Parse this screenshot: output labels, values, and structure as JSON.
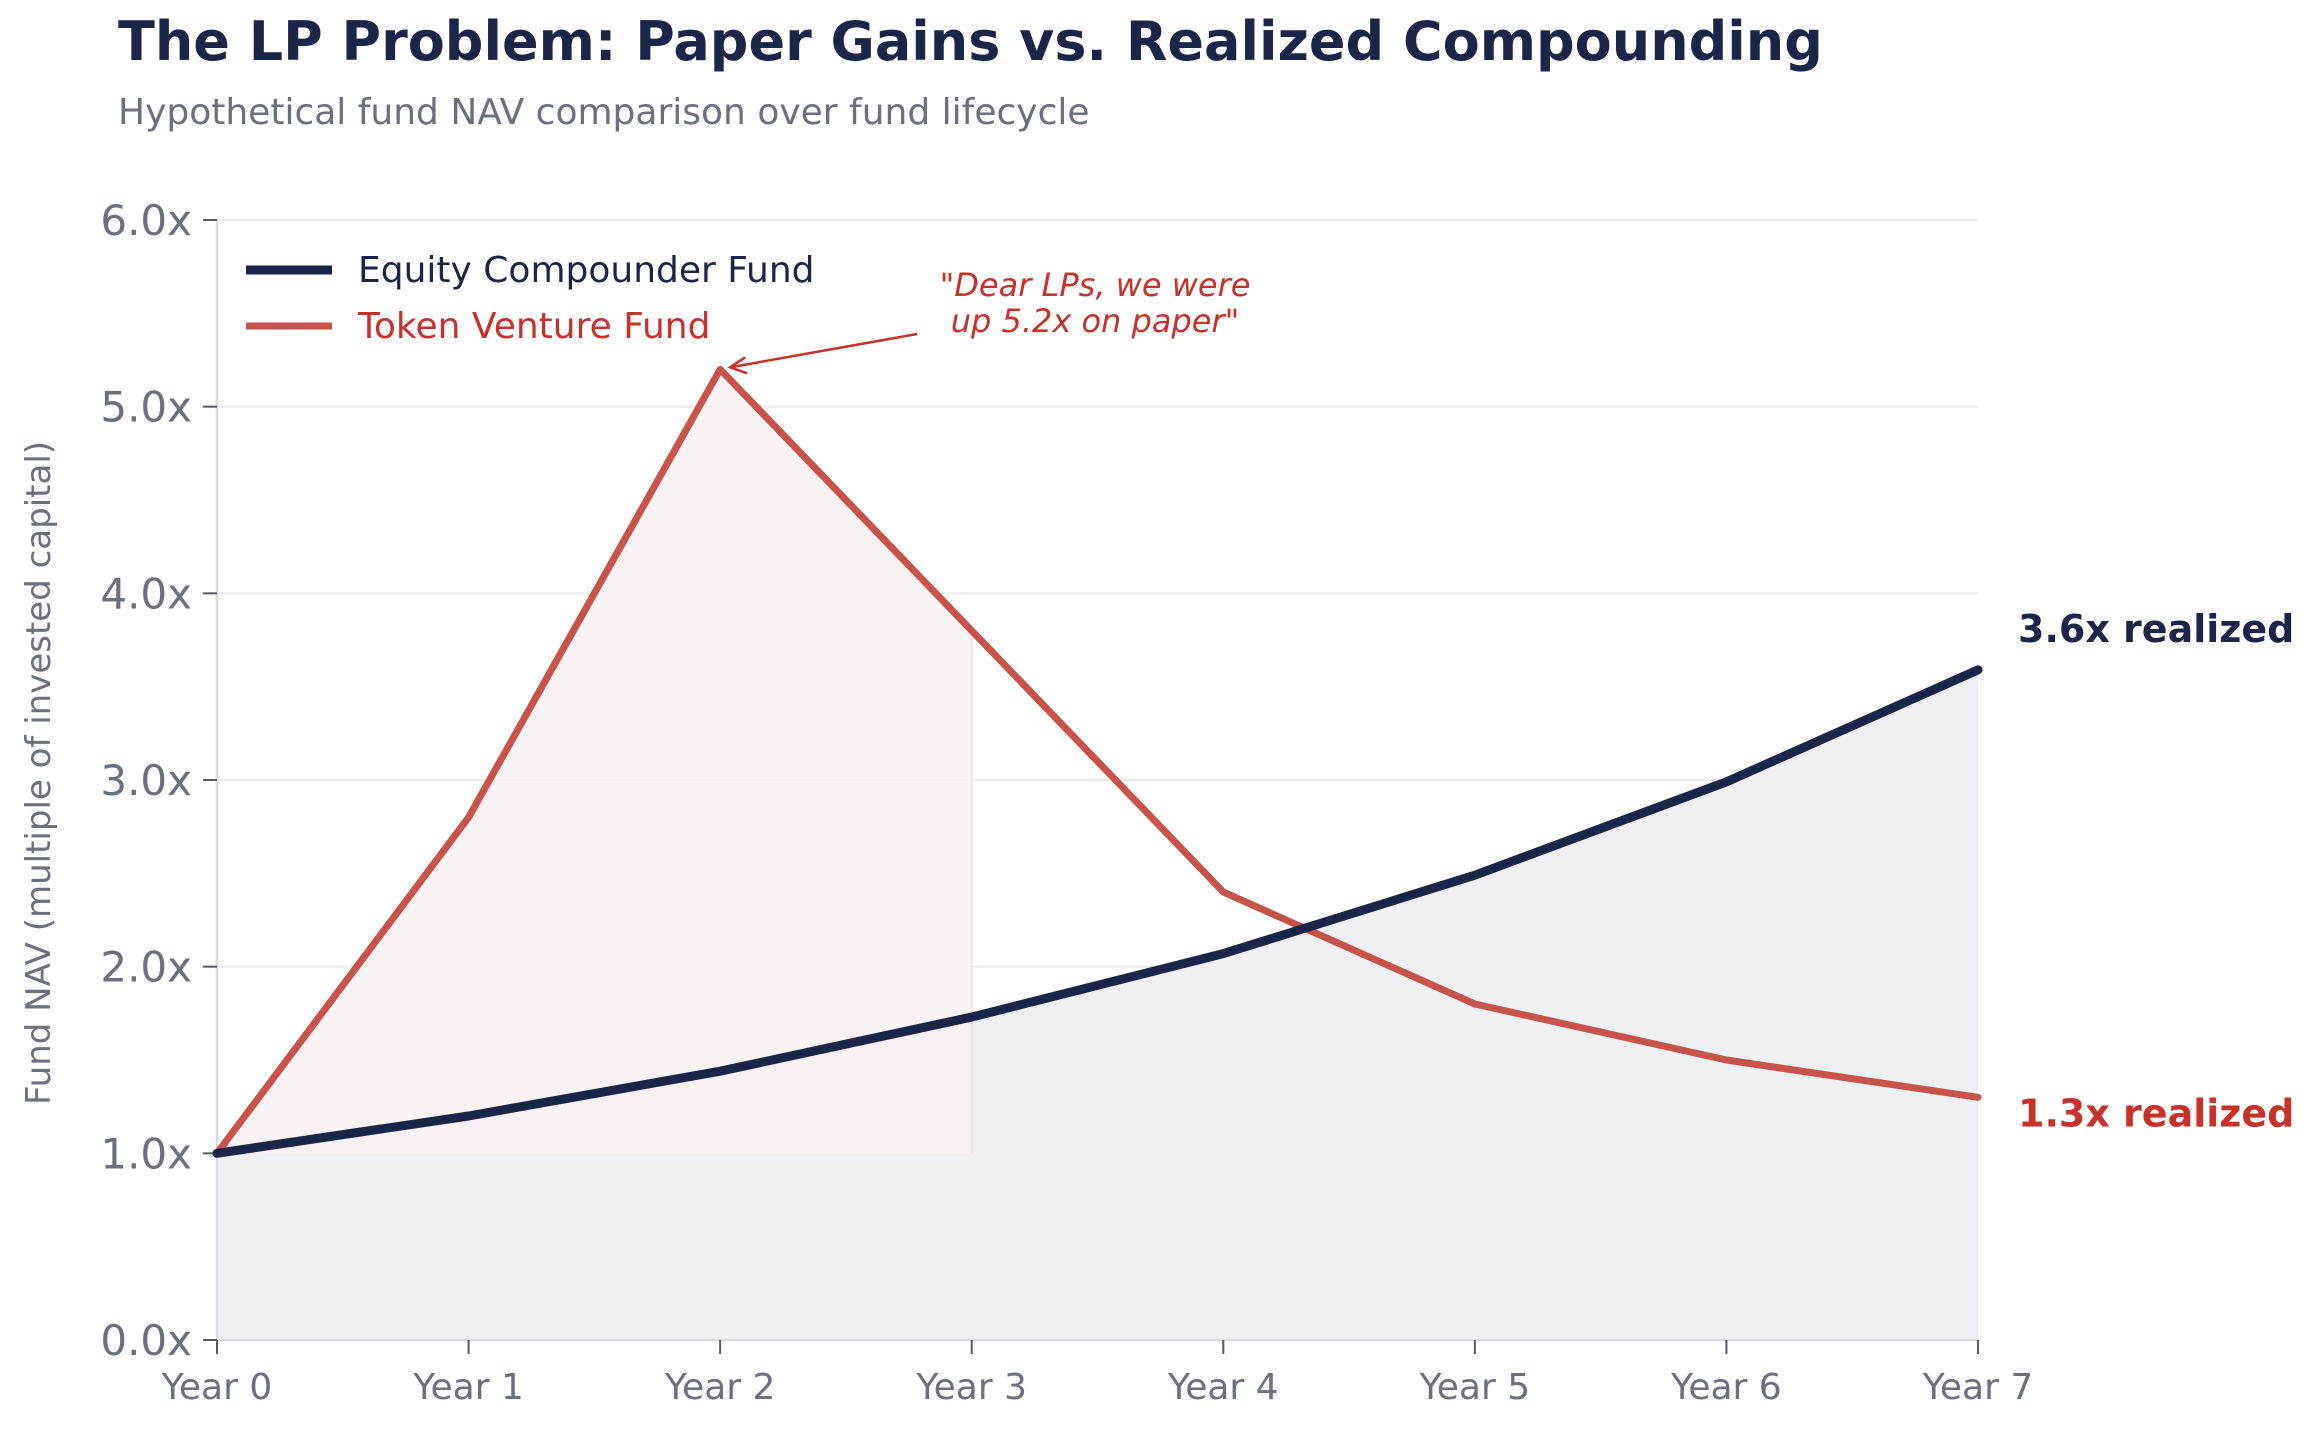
{
  "chart_data": {
    "type": "line",
    "title": "The LP Problem: Paper Gains vs. Realized Compounding",
    "subtitle": "Hypothetical fund NAV comparison over fund lifecycle",
    "ylabel": "Fund NAV (multiple of invested capital)",
    "xlabel": "",
    "categories": [
      "Year 0",
      "Year 1",
      "Year 2",
      "Year 3",
      "Year 4",
      "Year 5",
      "Year 6",
      "Year 7"
    ],
    "ylim": [
      0,
      6
    ],
    "yticks": [
      0,
      1,
      2,
      3,
      4,
      5,
      6
    ],
    "ytick_labels": [
      "0.0x",
      "1.0x",
      "2.0x",
      "3.0x",
      "4.0x",
      "5.0x",
      "6.0x"
    ],
    "grid": true,
    "legend_position": "top-left",
    "series": [
      {
        "name": "Equity Compounder Fund",
        "values": [
          1.0,
          1.2,
          1.44,
          1.73,
          2.07,
          2.49,
          2.99,
          3.59
        ],
        "color": "#1a2547",
        "end_label": "3.6x realized",
        "fill_to": 0
      },
      {
        "name": "Token Venture Fund",
        "values": [
          1.0,
          2.8,
          5.2,
          3.8,
          2.4,
          1.8,
          1.5,
          1.3
        ],
        "color": "#c8534a",
        "end_label": "1.3x realized",
        "fill_to": 1,
        "fill_range": [
          0,
          3
        ]
      }
    ],
    "annotations": [
      {
        "lines": [
          "\"Dear LPs, we were",
          "up 5.2x on paper\""
        ],
        "x": "Year 2",
        "y": 5.2,
        "color": "#c8302a"
      }
    ],
    "colors": {
      "equity": "#1a2547",
      "token": "#c8534a",
      "token_text": "#c8302a",
      "grid": "#ebebef",
      "axis": "#dcdde3",
      "equity_fill": "#eff0f3",
      "token_fill": "#f9f1f2"
    }
  }
}
